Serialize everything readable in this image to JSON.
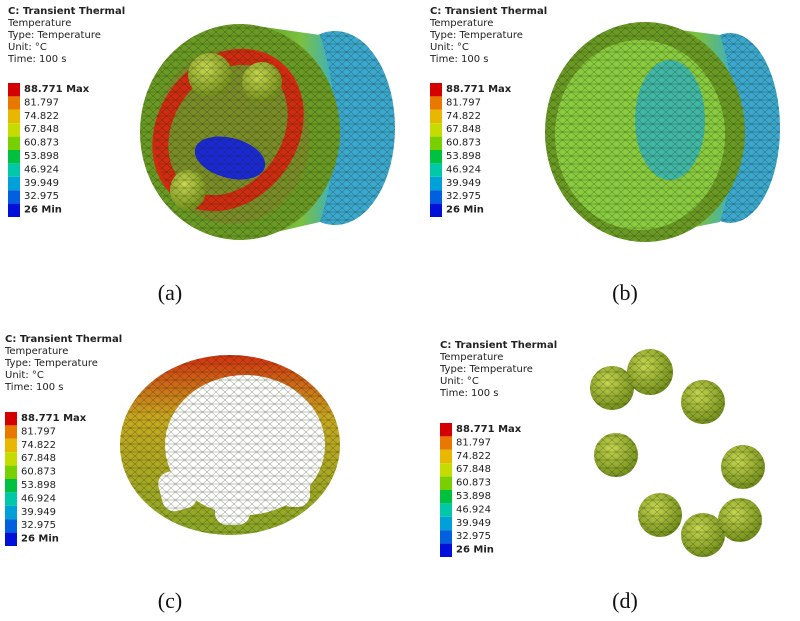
{
  "panels": [
    {
      "header": {
        "title": "C: Transient Thermal",
        "lines": [
          "Temperature",
          "Type: Temperature",
          "Unit: °C",
          "Time: 100 s"
        ]
      },
      "legend": [
        "88.771 Max",
        "81.797",
        "74.822",
        "67.848",
        "60.873",
        "53.898",
        "46.924",
        "39.949",
        "32.975",
        "26 Min"
      ],
      "caption": "(a)"
    },
    {
      "header": {
        "title": "C: Transient Thermal",
        "lines": [
          "Temperature",
          "Type: Temperature",
          "Unit: °C",
          "Time: 100 s"
        ]
      },
      "legend": [
        "88.771 Max",
        "81.797",
        "74.822",
        "67.848",
        "60.873",
        "53.898",
        "46.924",
        "39.949",
        "32.975",
        "26 Min"
      ],
      "caption": "(b)"
    },
    {
      "header": {
        "title": "C: Transient Thermal",
        "lines": [
          "Temperature",
          "Type: Temperature",
          "Unit: °C",
          "Time: 100 s"
        ]
      },
      "legend": [
        "88.771 Max",
        "81.797",
        "74.822",
        "67.848",
        "60.873",
        "53.898",
        "46.924",
        "39.949",
        "32.975",
        "26 Min"
      ],
      "caption": "(c)"
    },
    {
      "header": {
        "title": "C: Transient Thermal",
        "lines": [
          "Temperature",
          "Type: Temperature",
          "Unit: °C",
          "Time: 100 s"
        ]
      },
      "legend": [
        "88.771 Max",
        "81.797",
        "74.822",
        "67.848",
        "60.873",
        "53.898",
        "46.924",
        "39.949",
        "32.975",
        "26 Min"
      ],
      "caption": "(d)"
    }
  ]
}
